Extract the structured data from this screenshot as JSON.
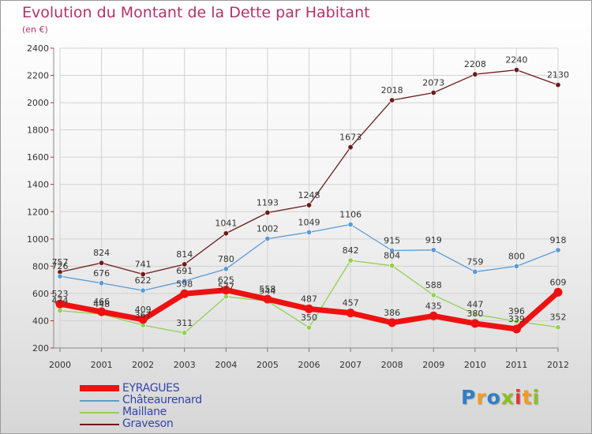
{
  "chart_data": {
    "type": "line",
    "title": "Evolution du Montant de la Dette par Habitant",
    "subtitle": "(en €)",
    "x": [
      "2000",
      "2001",
      "2002",
      "2003",
      "2004",
      "2005",
      "2006",
      "2007",
      "2008",
      "2009",
      "2010",
      "2011",
      "2012"
    ],
    "ylim": [
      200,
      2400
    ],
    "yticks": [
      "200",
      "400",
      "600",
      "800",
      "1000",
      "1200",
      "1400",
      "1600",
      "1800",
      "2000",
      "2200",
      "2400"
    ],
    "grid": true,
    "legend_position": "bottom-left",
    "series": [
      {
        "name": "Graveson",
        "color": "#6e1a1a",
        "values": [
          757,
          824,
          741,
          814,
          1041,
          1193,
          1248,
          1673,
          2018,
          2073,
          2208,
          2240,
          2130
        ]
      },
      {
        "name": "Châteaurenard",
        "color": "#5b9bd5",
        "values": [
          726,
          676,
          622,
          691,
          780,
          1002,
          1049,
          1106,
          915,
          919,
          759,
          800,
          918
        ]
      },
      {
        "name": "Maillane",
        "color": "#92d050",
        "values": [
          474,
          448,
          367,
          311,
          577,
          544,
          350,
          842,
          804,
          588,
          447,
          396,
          352
        ]
      },
      {
        "name": "EYRAGUES",
        "color": "#ee1111",
        "values": [
          523,
          466,
          409,
          598,
          625,
          558,
          487,
          457,
          386,
          435,
          380,
          339,
          609
        ]
      }
    ]
  },
  "brand": {
    "letters": [
      {
        "t": "P",
        "c": "#2e7fc9"
      },
      {
        "t": "r",
        "c": "#f39a1e"
      },
      {
        "t": "o",
        "c": "#2e7fc9"
      },
      {
        "t": "x",
        "c": "#8fbf1f"
      },
      {
        "t": "i",
        "c": "#e8332f"
      },
      {
        "t": "t",
        "c": "#f39a1e"
      },
      {
        "t": "i",
        "c": "#8fbf1f"
      }
    ]
  }
}
